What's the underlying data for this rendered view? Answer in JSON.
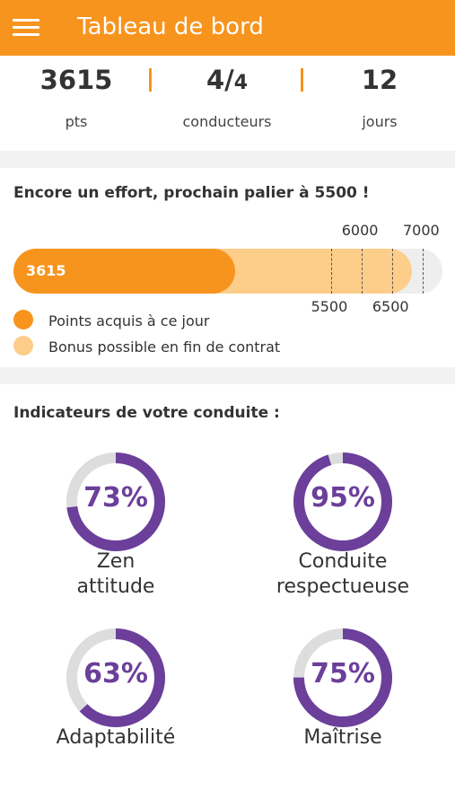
{
  "appbar": {
    "title": "Tableau de bord",
    "menu_icon": "hamburger-menu-icon",
    "color": "#f7941d"
  },
  "stats": [
    {
      "value": "3615",
      "label": "pts"
    },
    {
      "value_main": "4/",
      "value_sub": "4",
      "label": "conducteurs"
    },
    {
      "value": "12",
      "label": "jours"
    }
  ],
  "progress": {
    "title": "Encore un effort,  prochain palier à 5500 !",
    "points": 3615,
    "bonus": 6500,
    "max": 7000,
    "points_label": "3615",
    "milestones": [
      {
        "value": 5500,
        "label": "5500",
        "position": "below"
      },
      {
        "value": 6000,
        "label": "6000",
        "position": "above"
      },
      {
        "value": 6500,
        "label": "6500",
        "position": "below"
      },
      {
        "value": 7000,
        "label": "7000",
        "position": "above"
      }
    ],
    "legend": [
      {
        "label": "Points acquis à ce jour",
        "color": "#f7941d"
      },
      {
        "label": "Bonus possible en fin de contrat",
        "color": "#fdcd8a"
      }
    ]
  },
  "indicators": {
    "title": "Indicateurs de votre conduite :",
    "ring_color": "#6b3f9a",
    "track_color": "#dddddd",
    "items": [
      {
        "percent": 73,
        "percent_label": "73%",
        "label": "Zen\nattitude"
      },
      {
        "percent": 95,
        "percent_label": "95%",
        "label": "Conduite\nrespectueuse"
      },
      {
        "percent": 63,
        "percent_label": "63%",
        "label": "Adaptabilité"
      },
      {
        "percent": 75,
        "percent_label": "75%",
        "label": "Maîtrise"
      }
    ]
  }
}
